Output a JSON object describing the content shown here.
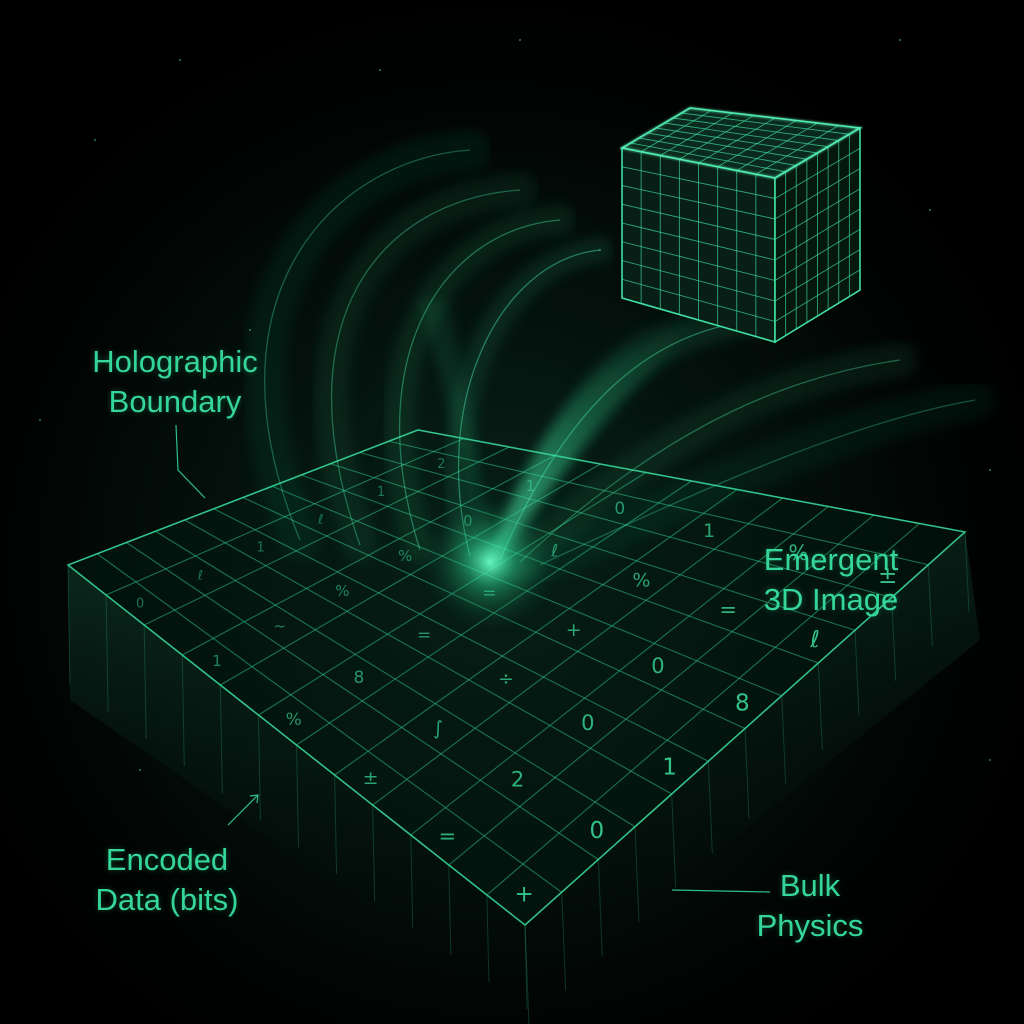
{
  "labels": {
    "boundary": [
      "Holographic",
      "Boundary"
    ],
    "emergent": [
      "Emergent",
      "3D Image"
    ],
    "encoded": [
      "Encoded",
      "Data (bits)"
    ],
    "bulk": [
      "Bulk",
      "Physics"
    ]
  },
  "boundary_symbols": [
    "0",
    "1",
    "%",
    "±",
    "=",
    "+",
    "ℓ",
    "~",
    "8",
    "∫",
    "2",
    "0",
    "1",
    "%",
    "=",
    "÷",
    "0",
    "1",
    "ℓ",
    "%",
    "=",
    "+",
    "0",
    "8",
    "1",
    "0",
    "ℓ",
    "%",
    "=",
    "ℓ",
    "2",
    "1"
  ],
  "colors": {
    "background": "#000000",
    "accent": "#35d69a",
    "grid": "#2fbf88",
    "glow": "#3cf0a8"
  },
  "icons": [
    "cube-icon",
    "arrow-icon"
  ]
}
